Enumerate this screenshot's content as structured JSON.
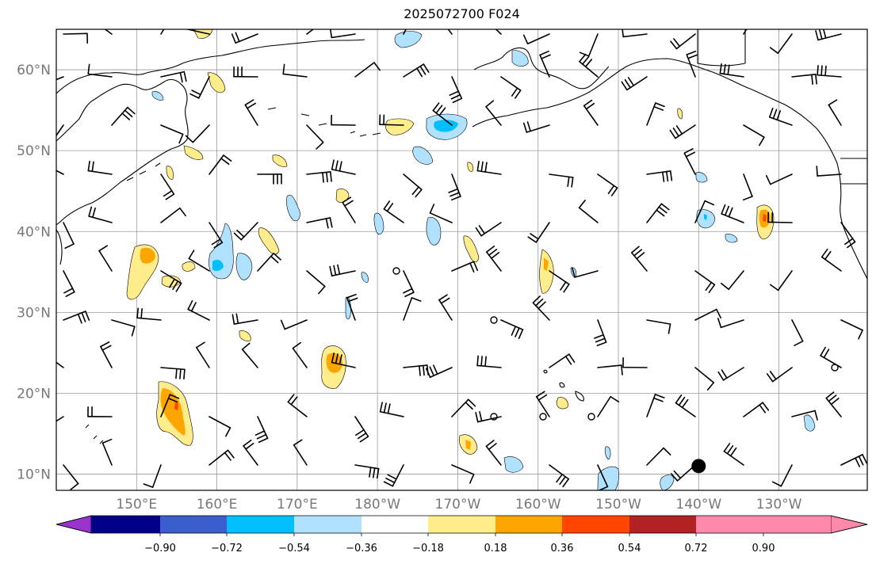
{
  "title": "2025072700 F024",
  "map": {
    "lat_labels": [
      "10°N",
      "20°N",
      "30°N",
      "40°N",
      "50°N",
      "60°N"
    ],
    "lon_labels": [
      "150°E",
      "160°E",
      "170°E",
      "180°W",
      "170°W",
      "160°W",
      "150°W",
      "140°W",
      "130°W"
    ],
    "lat_values": [
      10,
      20,
      30,
      40,
      50,
      60
    ],
    "lon_values": [
      150,
      160,
      170,
      180,
      190,
      200,
      210,
      220,
      230
    ],
    "extent": {
      "lon_min": 140,
      "lon_max": 241,
      "lat_min": 8,
      "lat_max": 65
    }
  },
  "colorbar": {
    "tick_labels": [
      "−0.90",
      "−0.72",
      "−0.54",
      "−0.36",
      "−0.18",
      "0.18",
      "0.36",
      "0.54",
      "0.72",
      "0.90"
    ],
    "colors": [
      "#9933cc",
      "#000088",
      "#3a5fcd",
      "#00bfff",
      "#b0e2ff",
      "#ffffff",
      "#ffec8b",
      "#ffa500",
      "#ff4500",
      "#b22222",
      "#ff88aa"
    ],
    "extend": "both"
  },
  "symbols": {
    "tropical_center": {
      "lon": 220,
      "lat": 11
    }
  }
}
